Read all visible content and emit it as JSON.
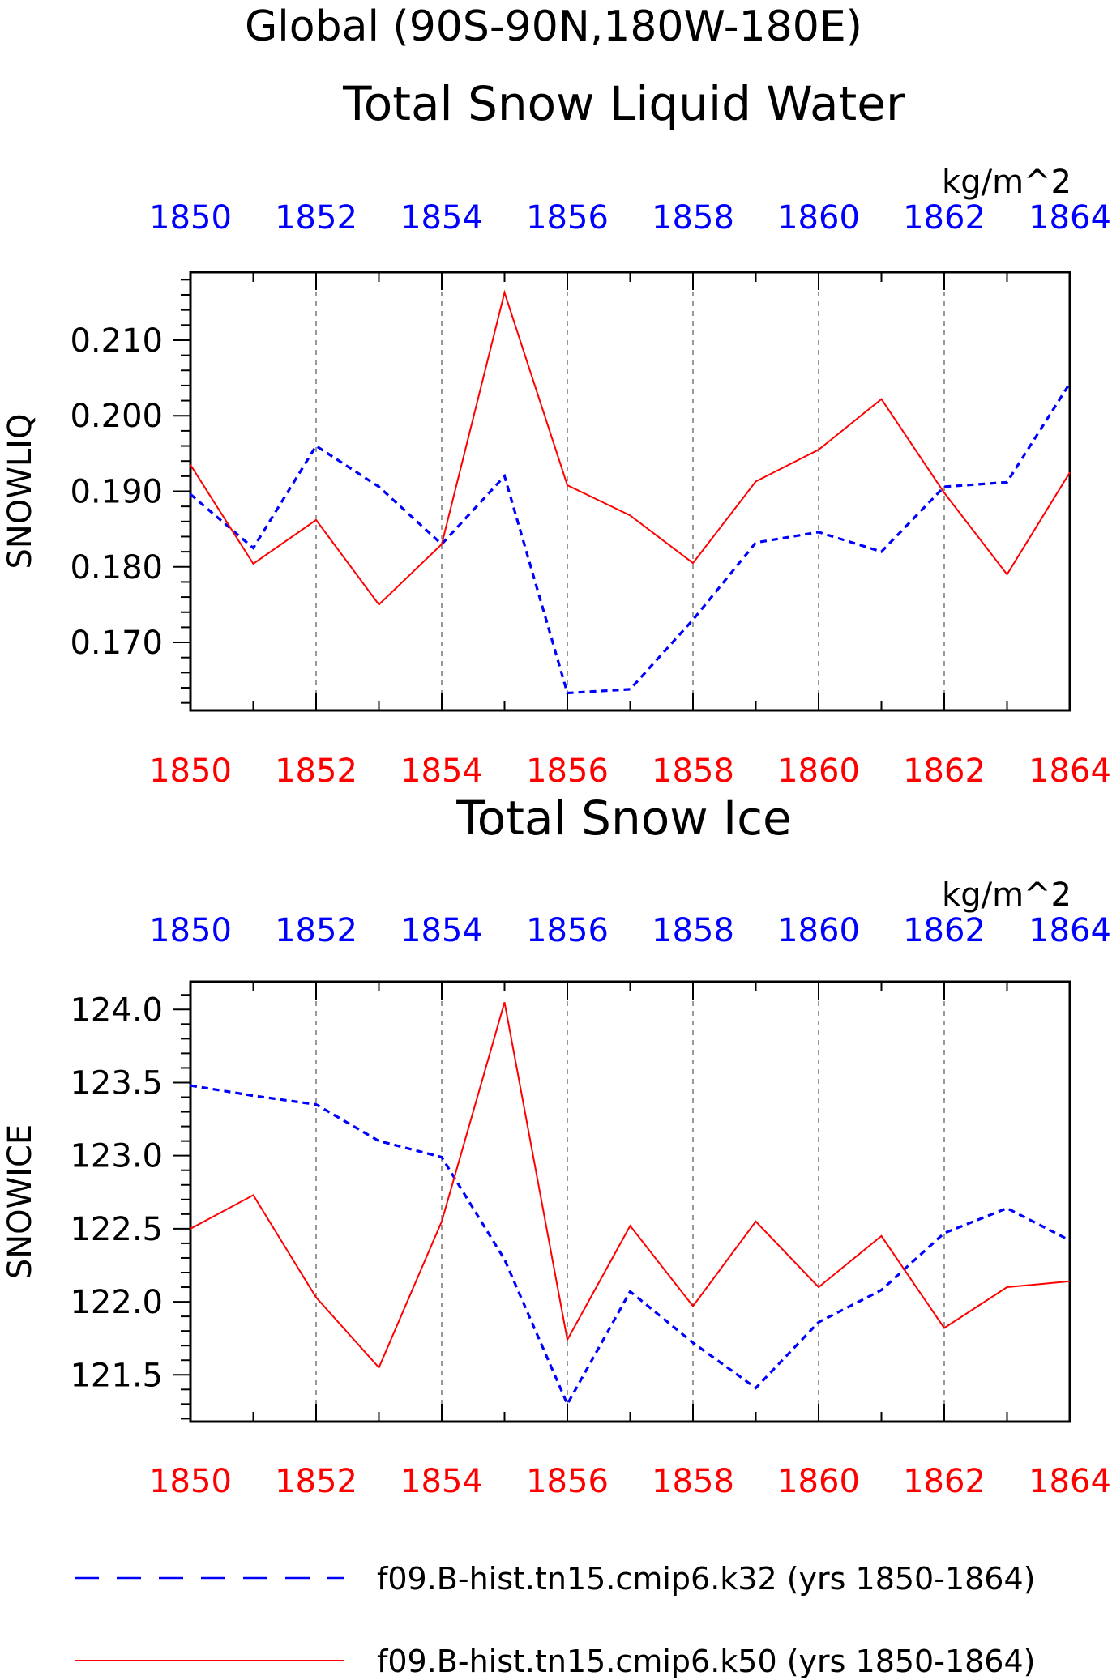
{
  "header": {
    "title": "Global (90S-90N,180W-180E)"
  },
  "colors": {
    "k32": "#0000ff",
    "k50": "#ff0000",
    "axis": "#000000",
    "grid": "#555555"
  },
  "chart_data": [
    {
      "type": "line",
      "title": "Total Snow Liquid Water",
      "units": "kg/m^2",
      "ylabel": "SNOWLIQ",
      "xlim": [
        1850,
        1864
      ],
      "ylim": [
        0.161,
        0.219
      ],
      "x": [
        1850,
        1851,
        1852,
        1853,
        1854,
        1855,
        1856,
        1857,
        1858,
        1859,
        1860,
        1861,
        1862,
        1863,
        1864
      ],
      "x_ticks": [
        "1850",
        "1852",
        "1854",
        "1856",
        "1858",
        "1860",
        "1862",
        "1864"
      ],
      "y_ticks": [
        "0.170",
        "0.180",
        "0.190",
        "0.200",
        "0.210"
      ],
      "grid": "vertical dashed at labeled years",
      "series": [
        {
          "name": "f09.B-hist.tn15.cmip6.k32 (yrs 1850-1864)",
          "style": "dashed",
          "color": "#0000ff",
          "values": [
            0.1896,
            0.1825,
            0.196,
            0.1906,
            0.183,
            0.192,
            0.1633,
            0.1638,
            0.173,
            0.1832,
            0.1846,
            0.182,
            0.1906,
            0.1912,
            0.2043
          ]
        },
        {
          "name": "f09.B-hist.tn15.cmip6.k50 (yrs 1850-1864)",
          "style": "solid",
          "color": "#ff0000",
          "values": [
            0.1935,
            0.1804,
            0.1862,
            0.175,
            0.183,
            0.2163,
            0.1908,
            0.1868,
            0.1805,
            0.1913,
            0.1955,
            0.2022,
            0.1898,
            0.179,
            0.1925
          ]
        }
      ]
    },
    {
      "type": "line",
      "title": "Total Snow Ice",
      "units": "kg/m^2",
      "ylabel": "SNOWICE",
      "xlim": [
        1850,
        1864
      ],
      "ylim": [
        121.18,
        124.19
      ],
      "x": [
        1850,
        1851,
        1852,
        1853,
        1854,
        1855,
        1856,
        1857,
        1858,
        1859,
        1860,
        1861,
        1862,
        1863,
        1864
      ],
      "x_ticks": [
        "1850",
        "1852",
        "1854",
        "1856",
        "1858",
        "1860",
        "1862",
        "1864"
      ],
      "y_ticks": [
        "121.5",
        "122.0",
        "122.5",
        "123.0",
        "123.5",
        "124.0"
      ],
      "grid": "vertical dashed at labeled years",
      "series": [
        {
          "name": "f09.B-hist.tn15.cmip6.k32 (yrs 1850-1864)",
          "style": "dashed",
          "color": "#0000ff",
          "values": [
            123.48,
            123.41,
            123.35,
            123.1,
            122.99,
            122.29,
            121.3,
            122.07,
            121.72,
            121.41,
            121.86,
            122.08,
            122.47,
            122.64,
            122.42
          ]
        },
        {
          "name": "f09.B-hist.tn15.cmip6.k50 (yrs 1850-1864)",
          "style": "solid",
          "color": "#ff0000",
          "values": [
            122.5,
            122.73,
            122.03,
            121.55,
            122.55,
            124.05,
            121.74,
            122.52,
            121.97,
            122.55,
            122.1,
            122.45,
            121.82,
            122.1,
            122.14
          ]
        }
      ]
    }
  ],
  "legend": {
    "items": [
      {
        "label": "f09.B-hist.tn15.cmip6.k32 (yrs 1850-1864)",
        "style": "dashed",
        "color": "#0000ff"
      },
      {
        "label": "f09.B-hist.tn15.cmip6.k50 (yrs 1850-1864)",
        "style": "solid",
        "color": "#ff0000"
      }
    ]
  }
}
